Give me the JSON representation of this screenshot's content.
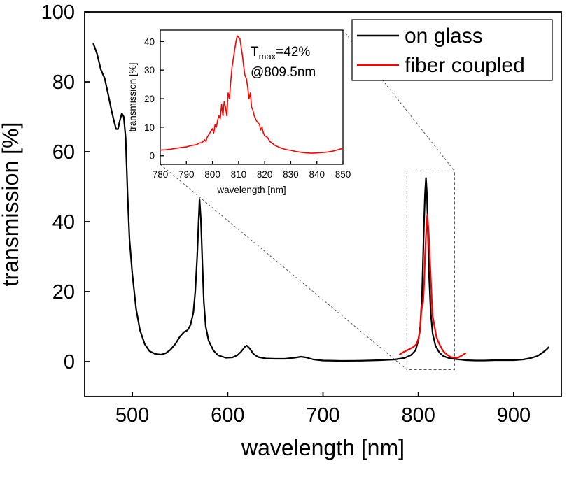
{
  "colors": {
    "on_glass": "#000000",
    "fiber_coupled": "#ff0000",
    "guide": "#555555"
  },
  "legend": {
    "on_glass": "on glass",
    "fiber_coupled": "fiber coupled",
    "placement": "top-right"
  },
  "annotation": {
    "t": "T",
    "sub": "max",
    "value": "=42%",
    "at": "@809.5nm"
  },
  "chart_data": [
    {
      "type": "line",
      "xlabel": "wavelength [nm]",
      "ylabel": "transmission [%]",
      "xlim": [
        450,
        950
      ],
      "ylim": [
        -10,
        100
      ],
      "xticks": [
        500,
        600,
        700,
        800,
        900
      ],
      "yticks": [
        0,
        20,
        40,
        60,
        80,
        100
      ],
      "grid": false,
      "series": [
        {
          "name": "on glass",
          "color": "#000000",
          "points": [
            [
              459,
              91
            ],
            [
              463,
              88
            ],
            [
              467,
              83.5
            ],
            [
              471,
              81
            ],
            [
              475,
              76
            ],
            [
              478,
              72
            ],
            [
              481,
              68.5
            ],
            [
              483,
              66.5
            ],
            [
              485,
              66.5
            ],
            [
              487,
              69
            ],
            [
              489,
              71
            ],
            [
              491,
              70
            ],
            [
              493,
              64
            ],
            [
              495,
              48
            ],
            [
              497,
              35
            ],
            [
              500,
              25
            ],
            [
              504,
              15
            ],
            [
              508,
              9
            ],
            [
              513,
              5
            ],
            [
              518,
              3
            ],
            [
              524,
              2.2
            ],
            [
              530,
              2
            ],
            [
              535,
              2.4
            ],
            [
              540,
              3.4
            ],
            [
              545,
              5
            ],
            [
              550,
              7.2
            ],
            [
              554,
              8.4
            ],
            [
              558,
              9
            ],
            [
              561,
              10.5
            ],
            [
              564,
              14
            ],
            [
              566,
              20
            ],
            [
              568,
              30
            ],
            [
              569.5,
              40
            ],
            [
              570.5,
              46.5
            ],
            [
              572,
              40
            ],
            [
              573.5,
              28
            ],
            [
              575,
              17
            ],
            [
              577,
              10
            ],
            [
              580,
              6
            ],
            [
              585,
              3.2
            ],
            [
              590,
              1.8
            ],
            [
              598,
              1.1
            ],
            [
              605,
              1.2
            ],
            [
              610,
              1.8
            ],
            [
              614,
              2.8
            ],
            [
              618,
              4.2
            ],
            [
              620,
              4.6
            ],
            [
              623,
              3.8
            ],
            [
              627,
              2.2
            ],
            [
              632,
              1.3
            ],
            [
              640,
              0.9
            ],
            [
              650,
              0.8
            ],
            [
              660,
              0.8
            ],
            [
              670,
              1.1
            ],
            [
              677,
              1.4
            ],
            [
              682,
              1.2
            ],
            [
              690,
              0.6
            ],
            [
              700,
              0.3
            ],
            [
              720,
              0.2
            ],
            [
              740,
              0.25
            ],
            [
              760,
              0.4
            ],
            [
              775,
              0.6
            ],
            [
              785,
              1
            ],
            [
              792,
              1.8
            ],
            [
              797,
              3.2
            ],
            [
              800,
              6
            ],
            [
              802,
              10
            ],
            [
              804,
              20
            ],
            [
              805,
              30
            ],
            [
              806,
              40
            ],
            [
              807,
              48
            ],
            [
              808,
              52.5
            ],
            [
              809,
              48
            ],
            [
              810,
              38
            ],
            [
              811,
              26
            ],
            [
              813,
              14
            ],
            [
              815,
              8
            ],
            [
              818,
              4.5
            ],
            [
              822,
              2.6
            ],
            [
              826,
              1.6
            ],
            [
              832,
              1
            ],
            [
              840,
              0.7
            ],
            [
              850,
              0.4
            ],
            [
              860,
              0.3
            ],
            [
              870,
              0.3
            ],
            [
              880,
              0.4
            ],
            [
              890,
              0.4
            ],
            [
              900,
              0.4
            ],
            [
              910,
              0.6
            ],
            [
              918,
              1
            ],
            [
              925,
              1.6
            ],
            [
              930,
              2.5
            ],
            [
              935,
              3.6
            ],
            [
              937,
              4.2
            ]
          ]
        },
        {
          "name": "fiber coupled",
          "color": "#ff0000",
          "points": [
            [
              780,
              2
            ],
            [
              785,
              2.8
            ],
            [
              790,
              3.5
            ],
            [
              795,
              4.2
            ],
            [
              798,
              5
            ],
            [
              800,
              6.5
            ],
            [
              802,
              9
            ],
            [
              803,
              14
            ],
            [
              804,
              16
            ],
            [
              805,
              17
            ],
            [
              806,
              22
            ],
            [
              807,
              30
            ],
            [
              808,
              36
            ],
            [
              809,
              41
            ],
            [
              809.5,
              42
            ],
            [
              810,
              40
            ],
            [
              811,
              36
            ],
            [
              812,
              30
            ],
            [
              813,
              24
            ],
            [
              814,
              18
            ],
            [
              815,
              13
            ],
            [
              817,
              10
            ],
            [
              819,
              7
            ],
            [
              822,
              5
            ],
            [
              826,
              3
            ],
            [
              830,
              2
            ],
            [
              834,
              1.3
            ],
            [
              838,
              1.1
            ],
            [
              842,
              1.2
            ],
            [
              846,
              1.8
            ],
            [
              850,
              2.5
            ]
          ]
        }
      ]
    },
    {
      "type": "line",
      "xlabel": "wavelength [nm]",
      "ylabel": "transmission [%]",
      "xlim": [
        780,
        850
      ],
      "ylim": [
        -3,
        44
      ],
      "xticks": [
        780,
        790,
        800,
        810,
        820,
        830,
        840,
        850
      ],
      "yticks": [
        0,
        10,
        20,
        30,
        40
      ],
      "grid": false,
      "series": [
        {
          "name": "fiber coupled",
          "color": "#ff0000",
          "points": [
            [
              780,
              2
            ],
            [
              782,
              2.1
            ],
            [
              784,
              2.3
            ],
            [
              786,
              2.6
            ],
            [
              788,
              2.9
            ],
            [
              790,
              3.1
            ],
            [
              792,
              3.6
            ],
            [
              794,
              3.9
            ],
            [
              795,
              4.5
            ],
            [
              796,
              4.6
            ],
            [
              797,
              5.6
            ],
            [
              797.5,
              5
            ],
            [
              798,
              6.5
            ],
            [
              799,
              8
            ],
            [
              800,
              9.5
            ],
            [
              800.5,
              8
            ],
            [
              801,
              11
            ],
            [
              801.5,
              10
            ],
            [
              802,
              12.5
            ],
            [
              802.5,
              14
            ],
            [
              803,
              13
            ],
            [
              803.5,
              18
            ],
            [
              804,
              14
            ],
            [
              804.5,
              19
            ],
            [
              805,
              17
            ],
            [
              805.5,
              14
            ],
            [
              806,
              22
            ],
            [
              806.5,
              20
            ],
            [
              807,
              26
            ],
            [
              807.5,
              31
            ],
            [
              808,
              34
            ],
            [
              808.5,
              37
            ],
            [
              809,
              40
            ],
            [
              809.5,
              42
            ],
            [
              810,
              41.5
            ],
            [
              810.5,
              41
            ],
            [
              811,
              38
            ],
            [
              811.5,
              35
            ],
            [
              812,
              31
            ],
            [
              812.5,
              28
            ],
            [
              813,
              27
            ],
            [
              813.5,
              24
            ],
            [
              814,
              20
            ],
            [
              814.5,
              22
            ],
            [
              815,
              17
            ],
            [
              815.5,
              16
            ],
            [
              816,
              14
            ],
            [
              817,
              12
            ],
            [
              818,
              11
            ],
            [
              818.5,
              9
            ],
            [
              819,
              10
            ],
            [
              819.5,
              8
            ],
            [
              820,
              7
            ],
            [
              821,
              6.5
            ],
            [
              822,
              5
            ],
            [
              824,
              3.6
            ],
            [
              826,
              2.8
            ],
            [
              828,
              2.2
            ],
            [
              830,
              1.9
            ],
            [
              832,
              1.5
            ],
            [
              834,
              1.2
            ],
            [
              836,
              1
            ],
            [
              838,
              0.9
            ],
            [
              840,
              1
            ],
            [
              842,
              1.1
            ],
            [
              844,
              1.3
            ],
            [
              846,
              1.6
            ],
            [
              848,
              2.1
            ],
            [
              850,
              2.6
            ]
          ]
        }
      ]
    }
  ]
}
